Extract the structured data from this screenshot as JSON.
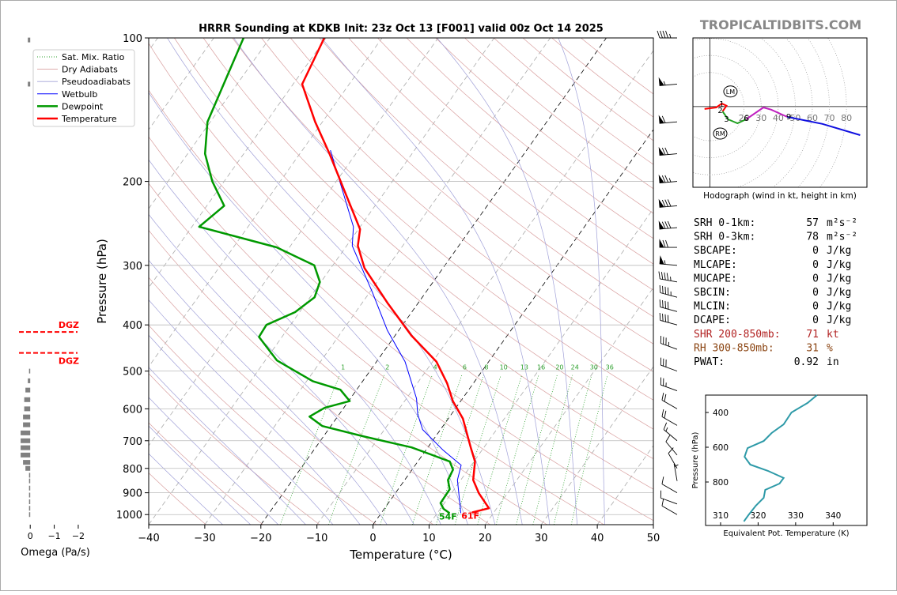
{
  "header": {
    "site": "TROPICALTIDBITS.COM"
  },
  "chart_data": [
    {
      "type": "skewt",
      "title": "HRRR Sounding at KDKB Init: 23z Oct 13 [F001] valid 00z Oct 14 2025",
      "xlabel": "Temperature (°C)",
      "ylabel": "Pressure (hPa)",
      "xlim": [
        -40,
        50
      ],
      "ylim": [
        1050,
        100
      ],
      "log_y": true,
      "skew": true,
      "grid": true,
      "legend": "upper left",
      "xticks": [
        {
          "value": -40,
          "label": "−40"
        },
        {
          "value": -30,
          "label": "−30"
        },
        {
          "value": -20,
          "label": "−20"
        },
        {
          "value": -10,
          "label": "−10"
        },
        0,
        10,
        20,
        30,
        40,
        50
      ],
      "yticks": [
        100,
        200,
        300,
        400,
        500,
        600,
        700,
        800,
        900,
        1000
      ],
      "reference_lines": [
        {
          "name": "Sat. Mix. Ratio",
          "color": "#2ca02c"
        },
        {
          "name": "Dry Adiabats",
          "color": "#d9a0a0"
        },
        {
          "name": "Pseudoadiabats",
          "color": "#a0a0d8"
        }
      ],
      "mixing_ratios": [
        1,
        2,
        4,
        6,
        8,
        10,
        13,
        16,
        20,
        24,
        30,
        36
      ],
      "series": [
        {
          "name": "Wetbulb",
          "color": "#0000ff",
          "linewidth": 1,
          "pressure": [
            172,
            249,
            273,
            341,
            411,
            478,
            571,
            616,
            663,
            733,
            788,
            846,
            938,
            993
          ],
          "values": [
            -55,
            -41.2,
            -39.0,
            -29.6,
            -22.0,
            -14.9,
            -8.2,
            -6.0,
            -3.2,
            3.1,
            8.2,
            9.4,
            12.5,
            14.2
          ]
        },
        {
          "name": "Dewpoint",
          "color": "#009900",
          "linewidth": 2.5,
          "surface_label": "54F",
          "pressure": [
            100,
            150,
            175,
            200,
            225,
            249,
            275,
            300,
            325,
            350,
            376,
            400,
            424,
            475,
            525,
            547,
            578,
            597,
            623,
            652,
            686,
            723,
            749,
            774,
            805,
            846,
            885,
            946,
            973,
            993
          ],
          "values": [
            -84.7,
            -80.5,
            -76.9,
            -72.1,
            -66.9,
            -68.7,
            -52.3,
            -43.3,
            -40.2,
            -39.2,
            -40.8,
            -44.3,
            -44.1,
            -37.9,
            -28.9,
            -22.9,
            -19.8,
            -23.4,
            -25.0,
            -21.5,
            -12.7,
            -2.9,
            1.6,
            5.7,
            7.3,
            7.7,
            9.2,
            9.3,
            10.6,
            12.2
          ]
        },
        {
          "name": "Temperature",
          "color": "#ff0000",
          "linewidth": 2.5,
          "surface_label": "61F",
          "pressure": [
            100,
            125,
            150,
            175,
            208,
            252,
            273,
            304,
            361,
            421,
            478,
            530,
            578,
            629,
            726,
            774,
            846,
            902,
            970,
            990
          ],
          "values": [
            -70.3,
            -68.4,
            -61.3,
            -54.7,
            -47.6,
            -39.7,
            -38.0,
            -34.0,
            -25.3,
            -17.1,
            -9.3,
            -4.7,
            -1.4,
            2.6,
            7.8,
            10.2,
            12.2,
            14.9,
            18.6,
            16.1
          ]
        }
      ],
      "wind_barbs": {
        "pressure": [
          100,
          125,
          150,
          175,
          200,
          225,
          250,
          275,
          300,
          325,
          350,
          375,
          400,
          450,
          500,
          550,
          600,
          650,
          700,
          750,
          800,
          850,
          900,
          950,
          1000
        ],
        "speed": [
          45,
          55,
          60,
          70,
          75,
          80,
          80,
          70,
          55,
          45,
          45,
          40,
          40,
          35,
          30,
          25,
          20,
          20,
          15,
          10,
          10,
          5,
          10,
          10,
          10
        ],
        "direction": [
          270,
          265,
          265,
          265,
          265,
          265,
          265,
          270,
          275,
          280,
          285,
          285,
          285,
          290,
          290,
          290,
          300,
          300,
          310,
          320,
          330,
          350,
          300,
          290,
          300
        ]
      }
    },
    {
      "type": "bar",
      "orientation": "horizontal",
      "xlabel": "Omega (Pa/s)",
      "xlim": [
        0.6,
        -2.2
      ],
      "xticks": [
        0,
        {
          "value": -1,
          "label": "−1"
        },
        {
          "value": -2,
          "label": "−2"
        }
      ],
      "ylim": [
        1050,
        100
      ],
      "log_y": true,
      "color": "#808080",
      "pressure": [
        101,
        125,
        500,
        524,
        548,
        574,
        600,
        624,
        648,
        674,
        700,
        724,
        750,
        777,
        800,
        827,
        850,
        880,
        910,
        940,
        970,
        1000
      ],
      "values": [
        0.1,
        0.1,
        0.05,
        0.1,
        0.2,
        0.25,
        0.25,
        0.3,
        0.3,
        0.4,
        0.4,
        0.4,
        0.4,
        0.3,
        0.2,
        0.05,
        0.05,
        0.05,
        0.05,
        0.05,
        0.05,
        0.05
      ],
      "dgz": {
        "label": "DGZ",
        "color": "#ff0000",
        "pressure": [
          414,
          458
        ]
      }
    },
    {
      "type": "hodograph",
      "xlabel": "Hodograph (wind in kt, height in km)",
      "xlim": [
        -10,
        92
      ],
      "ylim": [
        -47,
        40
      ],
      "rings": [
        20,
        30,
        40,
        50,
        60,
        70,
        80
      ],
      "segments": [
        {
          "color": "#ff0000",
          "u": [
            -3.2,
            3.7,
            6.9,
            9.7,
            7.4
          ],
          "v": [
            -1.4,
            -0.5,
            1.8,
            0.5,
            -2.8
          ]
        },
        {
          "color": "#22a022",
          "u": [
            7.4,
            10.6,
            16.1,
            21.2
          ],
          "v": [
            -2.8,
            -7.4,
            -9.7,
            -7.4
          ]
        },
        {
          "color": "#c020c0",
          "u": [
            21.2,
            31.3,
            35.9,
            45.2
          ],
          "v": [
            -7.4,
            -0.5,
            -1.8,
            -6.0
          ]
        },
        {
          "color": "#1010e0",
          "u": [
            45.2,
            65.9,
            88.0
          ],
          "v": [
            -6.0,
            -10.1,
            -16.6
          ]
        }
      ],
      "heights": {
        "labels": [
          1,
          2,
          3,
          6,
          9
        ],
        "u": [
          6.9,
          6.0,
          9.7,
          21.2,
          46.1
        ],
        "v": [
          1.8,
          -1.8,
          -6.9,
          -6.5,
          -5.5
        ]
      },
      "storm_motion": [
        {
          "label": "LM",
          "u": 12.0,
          "v": 8.8
        },
        {
          "label": "RM",
          "u": 6.0,
          "v": -15.7
        }
      ]
    },
    {
      "type": "line",
      "xlabel": "Equivalent Pot. Temperature (K)",
      "ylabel": "Pressure (hPa)",
      "xlim": [
        306,
        349
      ],
      "ylim": [
        1050,
        300
      ],
      "xticks": [
        310,
        320,
        330,
        340
      ],
      "yticks": [
        400,
        600,
        800
      ],
      "series": [
        {
          "color": "#2e9aa8",
          "pressure": [
            300,
            345,
            400,
            468,
            518,
            564,
            605,
            655,
            700,
            736,
            777,
            809,
            845,
            891,
            936,
            991,
            1027
          ],
          "values": [
            335.7,
            333.2,
            328.9,
            326.8,
            323.6,
            321.5,
            317.2,
            316.4,
            317.9,
            322.6,
            326.8,
            325.7,
            321.9,
            321.5,
            319.4,
            317.4,
            316.2
          ]
        }
      ]
    }
  ],
  "stats": [
    {
      "label": "SRH 0-1km:",
      "value": 57,
      "unit": "m²s⁻²",
      "color": "#000000"
    },
    {
      "label": "SRH 0-3km:",
      "value": 78,
      "unit": "m²s⁻²",
      "color": "#000000"
    },
    {
      "label": "SBCAPE:",
      "value": 0,
      "unit": "J/kg",
      "color": "#000000"
    },
    {
      "label": "MLCAPE:",
      "value": 0,
      "unit": "J/kg",
      "color": "#000000"
    },
    {
      "label": "MUCAPE:",
      "value": 0,
      "unit": "J/kg",
      "color": "#000000"
    },
    {
      "label": "SBCIN:",
      "value": 0,
      "unit": "J/kg",
      "color": "#000000"
    },
    {
      "label": "MLCIN:",
      "value": 0,
      "unit": "J/kg",
      "color": "#000000"
    },
    {
      "label": "DCAPE:",
      "value": 0,
      "unit": "J/kg",
      "color": "#000000"
    },
    {
      "label": "SHR 200-850mb:",
      "value": 71,
      "unit": "kt",
      "color": "#b22222"
    },
    {
      "label": "RH 300-850mb:",
      "value": 31,
      "unit": "%",
      "color": "#8b4513"
    },
    {
      "label": "PWAT:",
      "value": 0.92,
      "unit": "in",
      "color": "#000000"
    }
  ]
}
